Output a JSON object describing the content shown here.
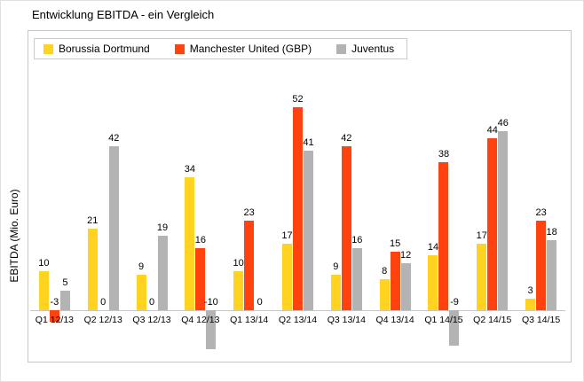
{
  "chart_data": {
    "type": "bar",
    "title": "Entwicklung EBITDA - ein Vergleich",
    "xlabel": "",
    "ylabel": "EBITDA (Mio. Euro)",
    "categories": [
      "Q1 12/13",
      "Q2 12/13",
      "Q3 12/13",
      "Q4 12/13",
      "Q1 13/14",
      "Q2 13/14",
      "Q3 13/14",
      "Q4 13/14",
      "Q1 14/15",
      "Q2 14/15",
      "Q3 14/15"
    ],
    "series": [
      {
        "name": "Borussia Dortmund",
        "color": "#ffd320",
        "values": [
          10,
          21,
          9,
          34,
          10,
          17,
          9,
          8,
          14,
          17,
          3
        ]
      },
      {
        "name": "Manchester United (GBP)",
        "color": "#ff420e",
        "values": [
          -3,
          0,
          0,
          16,
          23,
          52,
          42,
          15,
          38,
          44,
          23
        ]
      },
      {
        "name": "Juventus",
        "color": "#b3b3b3",
        "values": [
          5,
          42,
          19,
          -10,
          0,
          41,
          16,
          12,
          -9,
          46,
          18
        ]
      }
    ],
    "ylim": [
      -20,
      60
    ],
    "grid": false,
    "data_labels": true,
    "legend_position": "top-left-inside"
  }
}
